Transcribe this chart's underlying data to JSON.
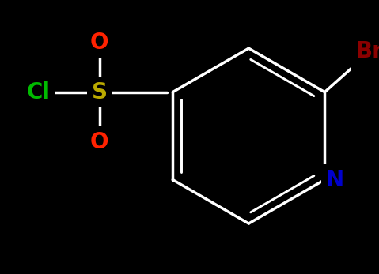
{
  "background_color": "#000000",
  "bond_color": "#ffffff",
  "bond_lw": 2.5,
  "figsize": [
    4.79,
    3.47
  ],
  "dpi": 100,
  "atoms": {
    "Br": {
      "label": "Br",
      "color": "#8b0000",
      "fontsize": 20
    },
    "N": {
      "label": "N",
      "color": "#0000cc",
      "fontsize": 20
    },
    "S": {
      "label": "S",
      "color": "#bbaa00",
      "fontsize": 20
    },
    "O1": {
      "label": "O",
      "color": "#ff2200",
      "fontsize": 20
    },
    "O2": {
      "label": "O",
      "color": "#ff2200",
      "fontsize": 20
    },
    "Cl": {
      "label": "Cl",
      "color": "#00bb00",
      "fontsize": 20
    }
  }
}
